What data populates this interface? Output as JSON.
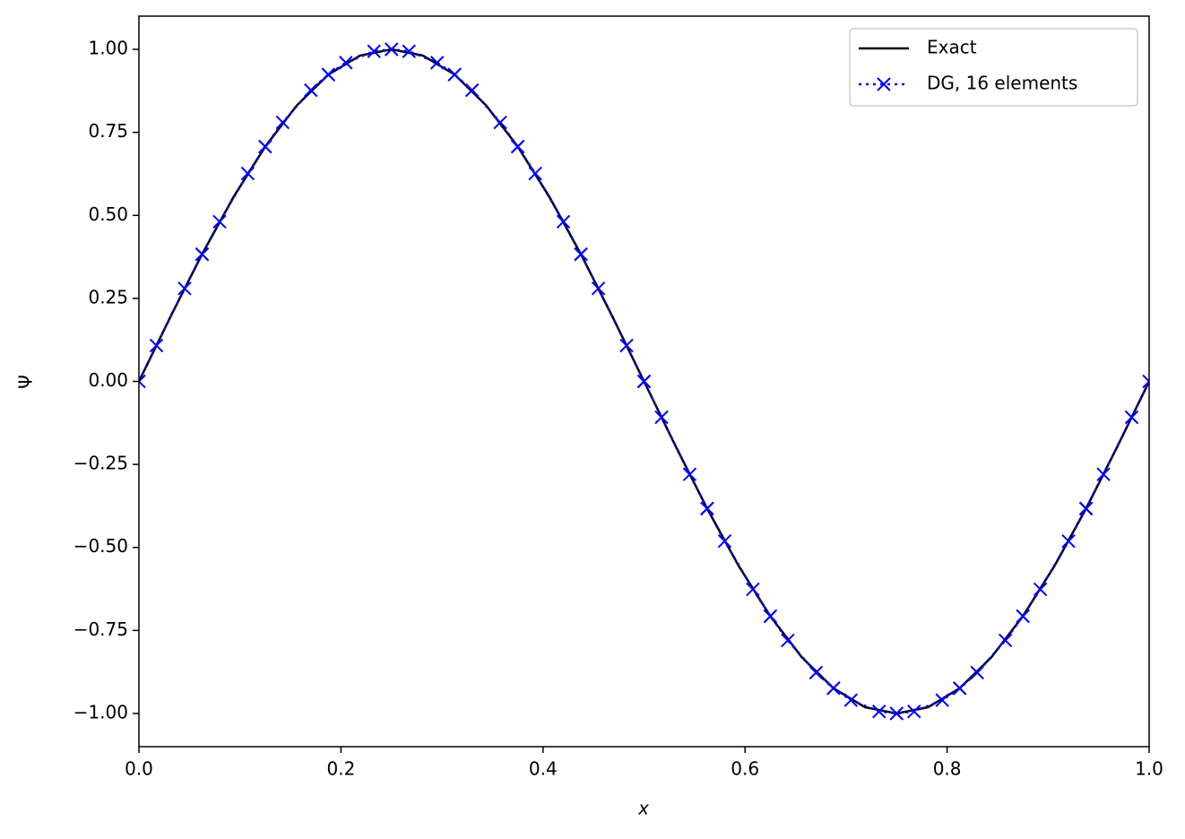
{
  "chart_data": {
    "type": "line",
    "xlabel": "x",
    "ylabel": "Ψ",
    "xlim": [
      0,
      1
    ],
    "ylim": [
      -1.1,
      1.1
    ],
    "xticks": [
      {
        "value": 0,
        "label": "0.0"
      },
      {
        "value": 0.2,
        "label": "0.2"
      },
      {
        "value": 0.4,
        "label": "0.4"
      },
      {
        "value": 0.6,
        "label": "0.6"
      },
      {
        "value": 0.8,
        "label": "0.8"
      },
      {
        "value": 1,
        "label": "1.0"
      }
    ],
    "yticks": [
      {
        "value": -1,
        "label": "−1.00"
      },
      {
        "value": -0.75,
        "label": "−0.75"
      },
      {
        "value": -0.5,
        "label": "−0.50"
      },
      {
        "value": -0.25,
        "label": "−0.25"
      },
      {
        "value": 0,
        "label": "0.00"
      },
      {
        "value": 0.25,
        "label": "0.25"
      },
      {
        "value": 0.5,
        "label": "0.50"
      },
      {
        "value": 0.75,
        "label": "0.75"
      },
      {
        "value": 1,
        "label": "1.00"
      }
    ],
    "grid": false,
    "legend": "upper right",
    "series": [
      {
        "name": "Exact",
        "color": "#000000",
        "linestyle": "solid",
        "marker": "none",
        "x": [
          0,
          0.03125,
          0.0625,
          0.09375,
          0.125,
          0.15625,
          0.1875,
          0.21875,
          0.25,
          0.28125,
          0.3125,
          0.34375,
          0.375,
          0.40625,
          0.4375,
          0.46875,
          0.5,
          0.53125,
          0.5625,
          0.59375,
          0.625,
          0.65625,
          0.6875,
          0.71875,
          0.75,
          0.78125,
          0.8125,
          0.84375,
          0.875,
          0.90625,
          0.9375,
          0.96875,
          1
        ],
        "values": [
          0,
          0.195,
          0.383,
          0.556,
          0.707,
          0.831,
          0.924,
          0.981,
          1,
          0.981,
          0.924,
          0.831,
          0.707,
          0.556,
          0.383,
          0.195,
          0,
          -0.195,
          -0.383,
          -0.556,
          -0.707,
          -0.831,
          -0.924,
          -0.981,
          -1,
          -0.981,
          -0.924,
          -0.831,
          -0.707,
          -0.556,
          -0.383,
          -0.195,
          0
        ]
      },
      {
        "name": "DG, 16 elements",
        "color": "#0000ff",
        "linestyle": "dotted",
        "marker": "x",
        "x": [
          0,
          0.0173,
          0.0452,
          0.0625,
          0.0625,
          0.0798,
          0.1077,
          0.125,
          0.125,
          0.1423,
          0.1702,
          0.1875,
          0.1875,
          0.2048,
          0.2327,
          0.25,
          0.25,
          0.2673,
          0.2952,
          0.3125,
          0.3125,
          0.3298,
          0.3577,
          0.375,
          0.375,
          0.3923,
          0.4202,
          0.4375,
          0.4375,
          0.4548,
          0.4827,
          0.5,
          0.5,
          0.5173,
          0.5452,
          0.5625,
          0.5625,
          0.5798,
          0.6077,
          0.625,
          0.625,
          0.6423,
          0.6702,
          0.6875,
          0.6875,
          0.7048,
          0.7327,
          0.75,
          0.75,
          0.7673,
          0.7952,
          0.8125,
          0.8125,
          0.8298,
          0.8577,
          0.875,
          0.875,
          0.8923,
          0.9202,
          0.9375,
          0.9375,
          0.9548,
          0.9827,
          1
        ],
        "values": [
          0,
          0.108,
          0.28,
          0.383,
          0.383,
          0.481,
          0.626,
          0.707,
          0.707,
          0.78,
          0.877,
          0.924,
          0.924,
          0.96,
          0.994,
          1,
          1,
          0.994,
          0.96,
          0.924,
          0.924,
          0.877,
          0.78,
          0.707,
          0.707,
          0.626,
          0.481,
          0.383,
          0.383,
          0.28,
          0.108,
          0,
          0,
          -0.108,
          -0.28,
          -0.383,
          -0.383,
          -0.481,
          -0.626,
          -0.707,
          -0.707,
          -0.78,
          -0.877,
          -0.924,
          -0.924,
          -0.96,
          -0.994,
          -1,
          -1,
          -0.994,
          -0.96,
          -0.924,
          -0.924,
          -0.877,
          -0.78,
          -0.707,
          -0.707,
          -0.626,
          -0.481,
          -0.383,
          -0.383,
          -0.28,
          -0.108,
          0
        ]
      }
    ]
  }
}
